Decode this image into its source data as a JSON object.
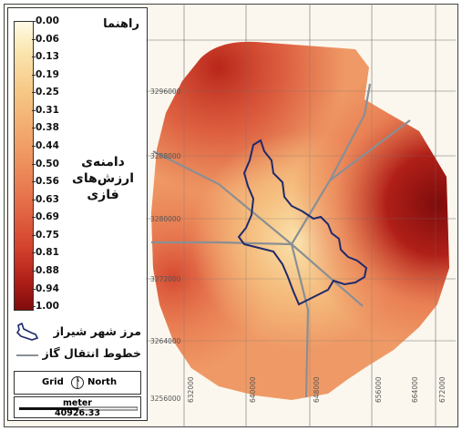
{
  "legend": {
    "title": "راهنما",
    "ticks": [
      "0.00",
      "0.06",
      "0.13",
      "0.19",
      "0.25",
      "0.31",
      "0.38",
      "0.44",
      "0.50",
      "0.56",
      "0.63",
      "0.69",
      "0.75",
      "0.81",
      "0.88",
      "0.94",
      "1.00"
    ],
    "range_title": [
      "دامنه‌ی",
      "ارزش‌های",
      "فازی"
    ],
    "boundary_label": "مرز شهر شیراز",
    "pipeline_label": "خطوط انتقال گاز",
    "boundary_color": "#1f2a6b",
    "pipeline_color": "#8a8f94",
    "ramp_colors": [
      "#fffbe6",
      "#f6c684",
      "#e6704a",
      "#b01f18",
      "#7e0c0c"
    ]
  },
  "north_arrow": {
    "grid": "Grid",
    "north": "North"
  },
  "scale_bar": {
    "unit": "meter",
    "value": "40926.33"
  },
  "map": {
    "y_labels": [
      "3296000",
      "3288000",
      "3280000",
      "3272000",
      "3264000",
      "3256000"
    ],
    "x_labels": [
      "632000",
      "640000",
      "648000",
      "656000",
      "664000",
      "672000"
    ]
  }
}
